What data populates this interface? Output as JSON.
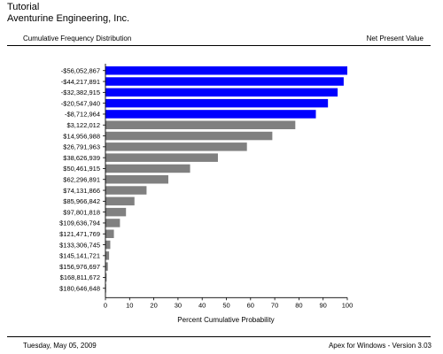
{
  "header": {
    "title": "Tutorial",
    "subtitle": "Aventurine Engineering, Inc.",
    "left_label": "Cumulative Frequency Distribution",
    "right_label": "Net Present Value"
  },
  "footer": {
    "date": "Tuesday, May 05, 2009",
    "version": "Apex for Windows - Version 3.03"
  },
  "chart_data": {
    "type": "bar",
    "orientation": "horizontal",
    "xlabel": "Percent Cumulative Probability",
    "ylabel": "",
    "xlim": [
      0,
      100
    ],
    "xticks": [
      0,
      10,
      20,
      30,
      40,
      50,
      60,
      70,
      80,
      90,
      100
    ],
    "grid": false,
    "categories": [
      "-$56,052,867",
      "-$44,217,891",
      "-$32,382,915",
      "-$20,547,940",
      "-$8,712,964",
      "$3,122,012",
      "$14,956,988",
      "$26,791,963",
      "$38,626,939",
      "$50,461,915",
      "$62,296,891",
      "$74,131,866",
      "$85,966,842",
      "$97,801,818",
      "$109,636,794",
      "$121,471,769",
      "$133,306,745",
      "$145,141,721",
      "$156,976,697",
      "$168,811,672",
      "$180,646,648"
    ],
    "values": [
      100,
      98.5,
      96,
      92,
      87,
      78.5,
      69,
      58.5,
      46.5,
      35,
      26,
      17,
      12,
      8.5,
      6,
      3.5,
      2,
      1.5,
      1,
      0.5,
      0.3
    ],
    "colors": {
      "negative": "#0000ff",
      "positive": "#808080"
    }
  }
}
